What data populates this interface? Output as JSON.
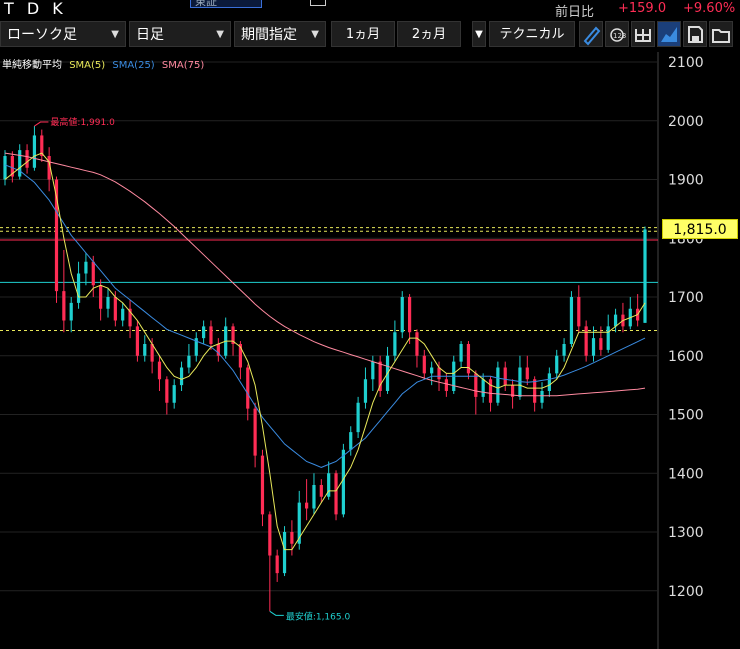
{
  "header": {
    "title": "T D K",
    "market_tab": "東証",
    "compare_label": "前日比",
    "change": "+159.0",
    "change_pct": "+9.60%"
  },
  "toolbar": {
    "chart_type": "ローソク足",
    "period": "日足",
    "range_label": "期間指定",
    "btn_1m": "1ヵ月",
    "btn_2m": "2ヵ月",
    "technical": "テクニカル"
  },
  "legend": {
    "prefix": "単純移動平均",
    "sma5": "SMA(5)",
    "sma25": "SMA(25)",
    "sma75": "SMA(75)"
  },
  "colors": {
    "up": "#1fd0d0",
    "down": "#ff2d55",
    "sma5": "#e8e85a",
    "sma25": "#3a8be0",
    "sma75": "#ff8aa0",
    "accent": "#ff2d55"
  },
  "annotations": {
    "high": "最高値:1,991.0",
    "low": "最安値:1,165.0",
    "last_price": "1,815.0"
  },
  "chart_data": {
    "type": "candlestick",
    "y_ticks": [
      2100,
      2000,
      1900,
      1800,
      1700,
      1600,
      1500,
      1400,
      1300,
      1200
    ],
    "ylim": [
      1080,
      2100
    ],
    "high": 1991.0,
    "low": 1165.0,
    "last": 1815.0,
    "horizontal_lines": [
      {
        "value": 1818,
        "style": "dashed",
        "color": "#e8e85a"
      },
      {
        "value": 1812,
        "style": "dashed",
        "color": "#e8e85a"
      },
      {
        "value": 1797,
        "style": "solid",
        "color": "#ff2d55"
      },
      {
        "value": 1725,
        "style": "solid",
        "color": "#1fd0d0"
      },
      {
        "value": 1643,
        "style": "dashed",
        "color": "#e8e85a"
      }
    ],
    "candles": [
      [
        1900,
        1940,
        1890,
        1950
      ],
      [
        1940,
        1905,
        1895,
        1948
      ],
      [
        1905,
        1950,
        1900,
        1960
      ],
      [
        1950,
        1920,
        1910,
        1960
      ],
      [
        1920,
        1975,
        1915,
        1991
      ],
      [
        1975,
        1940,
        1930,
        1985
      ],
      [
        1940,
        1900,
        1880,
        1955
      ],
      [
        1900,
        1710,
        1690,
        1905
      ],
      [
        1710,
        1660,
        1640,
        1780
      ],
      [
        1660,
        1690,
        1640,
        1700
      ],
      [
        1690,
        1740,
        1680,
        1760
      ],
      [
        1740,
        1760,
        1720,
        1775
      ],
      [
        1760,
        1720,
        1700,
        1770
      ],
      [
        1720,
        1680,
        1660,
        1730
      ],
      [
        1680,
        1700,
        1665,
        1715
      ],
      [
        1700,
        1660,
        1650,
        1710
      ],
      [
        1660,
        1680,
        1650,
        1690
      ],
      [
        1680,
        1650,
        1630,
        1695
      ],
      [
        1650,
        1600,
        1590,
        1660
      ],
      [
        1600,
        1620,
        1590,
        1635
      ],
      [
        1620,
        1590,
        1570,
        1630
      ],
      [
        1590,
        1560,
        1540,
        1600
      ],
      [
        1560,
        1520,
        1500,
        1565
      ],
      [
        1520,
        1550,
        1510,
        1560
      ],
      [
        1550,
        1580,
        1540,
        1590
      ],
      [
        1580,
        1600,
        1570,
        1620
      ],
      [
        1600,
        1630,
        1590,
        1640
      ],
      [
        1630,
        1650,
        1620,
        1660
      ],
      [
        1650,
        1620,
        1610,
        1660
      ],
      [
        1620,
        1600,
        1590,
        1630
      ],
      [
        1600,
        1650,
        1595,
        1665
      ],
      [
        1650,
        1620,
        1600,
        1655
      ],
      [
        1620,
        1580,
        1560,
        1625
      ],
      [
        1580,
        1510,
        1490,
        1585
      ],
      [
        1510,
        1430,
        1410,
        1520
      ],
      [
        1430,
        1330,
        1310,
        1440
      ],
      [
        1330,
        1260,
        1165,
        1335
      ],
      [
        1260,
        1230,
        1215,
        1270
      ],
      [
        1230,
        1300,
        1225,
        1310
      ],
      [
        1300,
        1280,
        1260,
        1320
      ],
      [
        1280,
        1350,
        1270,
        1370
      ],
      [
        1350,
        1340,
        1320,
        1390
      ],
      [
        1340,
        1380,
        1330,
        1400
      ],
      [
        1380,
        1360,
        1350,
        1390
      ],
      [
        1360,
        1400,
        1355,
        1420
      ],
      [
        1400,
        1330,
        1320,
        1405
      ],
      [
        1330,
        1440,
        1325,
        1450
      ],
      [
        1440,
        1470,
        1430,
        1480
      ],
      [
        1470,
        1520,
        1460,
        1530
      ],
      [
        1520,
        1560,
        1510,
        1580
      ],
      [
        1560,
        1590,
        1540,
        1600
      ],
      [
        1590,
        1540,
        1530,
        1600
      ],
      [
        1540,
        1600,
        1535,
        1615
      ],
      [
        1600,
        1640,
        1590,
        1660
      ],
      [
        1640,
        1700,
        1630,
        1710
      ],
      [
        1700,
        1640,
        1620,
        1705
      ],
      [
        1640,
        1600,
        1580,
        1645
      ],
      [
        1600,
        1570,
        1560,
        1610
      ],
      [
        1570,
        1580,
        1550,
        1590
      ],
      [
        1580,
        1560,
        1540,
        1590
      ],
      [
        1560,
        1540,
        1530,
        1570
      ],
      [
        1540,
        1590,
        1535,
        1600
      ],
      [
        1590,
        1620,
        1580,
        1625
      ],
      [
        1620,
        1570,
        1560,
        1625
      ],
      [
        1570,
        1530,
        1500,
        1575
      ],
      [
        1530,
        1560,
        1520,
        1570
      ],
      [
        1560,
        1520,
        1505,
        1565
      ],
      [
        1520,
        1580,
        1515,
        1590
      ],
      [
        1580,
        1550,
        1540,
        1590
      ],
      [
        1550,
        1530,
        1510,
        1560
      ],
      [
        1530,
        1580,
        1525,
        1600
      ],
      [
        1580,
        1560,
        1550,
        1600
      ],
      [
        1560,
        1520,
        1505,
        1565
      ],
      [
        1520,
        1540,
        1510,
        1555
      ],
      [
        1540,
        1570,
        1530,
        1580
      ],
      [
        1570,
        1600,
        1560,
        1610
      ],
      [
        1600,
        1620,
        1590,
        1630
      ],
      [
        1620,
        1700,
        1615,
        1710
      ],
      [
        1700,
        1650,
        1640,
        1720
      ],
      [
        1650,
        1600,
        1590,
        1660
      ],
      [
        1600,
        1630,
        1590,
        1650
      ],
      [
        1630,
        1610,
        1600,
        1650
      ],
      [
        1610,
        1650,
        1605,
        1670
      ],
      [
        1650,
        1670,
        1640,
        1680
      ],
      [
        1670,
        1650,
        1640,
        1690
      ],
      [
        1650,
        1680,
        1645,
        1700
      ],
      [
        1680,
        1660,
        1650,
        1705
      ],
      [
        1656,
        1815,
        1656,
        1820
      ]
    ],
    "sma5": [
      1900,
      1910,
      1920,
      1930,
      1940,
      1945,
      1930,
      1870,
      1800,
      1740,
      1700,
      1700,
      1715,
      1720,
      1715,
      1700,
      1690,
      1675,
      1660,
      1640,
      1620,
      1600,
      1580,
      1565,
      1560,
      1565,
      1580,
      1600,
      1615,
      1620,
      1625,
      1625,
      1615,
      1590,
      1550,
      1480,
      1400,
      1310,
      1270,
      1270,
      1290,
      1310,
      1330,
      1350,
      1370,
      1370,
      1390,
      1410,
      1440,
      1480,
      1520,
      1550,
      1570,
      1590,
      1610,
      1630,
      1630,
      1620,
      1600,
      1580,
      1570,
      1570,
      1580,
      1580,
      1570,
      1560,
      1550,
      1545,
      1550,
      1550,
      1550,
      1545,
      1545,
      1545,
      1550,
      1560,
      1580,
      1610,
      1640,
      1640,
      1640,
      1640,
      1640,
      1650,
      1660,
      1665,
      1670,
      1690
    ],
    "sma25": [
      1925,
      1920,
      1915,
      1905,
      1895,
      1880,
      1865,
      1845,
      1825,
      1805,
      1790,
      1775,
      1760,
      1745,
      1730,
      1715,
      1705,
      1695,
      1685,
      1675,
      1665,
      1655,
      1645,
      1640,
      1635,
      1630,
      1625,
      1620,
      1615,
      1605,
      1590,
      1575,
      1555,
      1535,
      1515,
      1495,
      1480,
      1465,
      1450,
      1440,
      1430,
      1420,
      1415,
      1410,
      1415,
      1420,
      1430,
      1440,
      1450,
      1460,
      1475,
      1490,
      1505,
      1520,
      1535,
      1545,
      1555,
      1560,
      1565,
      1565,
      1565,
      1565,
      1565,
      1565,
      1565,
      1565,
      1565,
      1562,
      1560,
      1558,
      1556,
      1555,
      1556,
      1558,
      1560,
      1563,
      1567,
      1572,
      1577,
      1582,
      1588,
      1594,
      1600,
      1606,
      1612,
      1618,
      1624,
      1630
    ],
    "sma75": [
      1945,
      1943,
      1941,
      1939,
      1936,
      1933,
      1930,
      1927,
      1924,
      1921,
      1918,
      1915,
      1912,
      1908,
      1902,
      1896,
      1888,
      1880,
      1871,
      1862,
      1852,
      1842,
      1831,
      1820,
      1808,
      1796,
      1784,
      1772,
      1760,
      1748,
      1736,
      1724,
      1712,
      1700,
      1688,
      1677,
      1667,
      1658,
      1650,
      1643,
      1636,
      1630,
      1624,
      1619,
      1614,
      1610,
      1606,
      1602,
      1598,
      1594,
      1590,
      1586,
      1582,
      1578,
      1574,
      1570,
      1566,
      1562,
      1558,
      1555,
      1552,
      1549,
      1546,
      1543,
      1540,
      1538,
      1536,
      1535,
      1534,
      1533,
      1532,
      1532,
      1532,
      1532,
      1532,
      1532,
      1533,
      1534,
      1535,
      1536,
      1537,
      1538,
      1539,
      1540,
      1541,
      1542,
      1543,
      1545
    ]
  }
}
